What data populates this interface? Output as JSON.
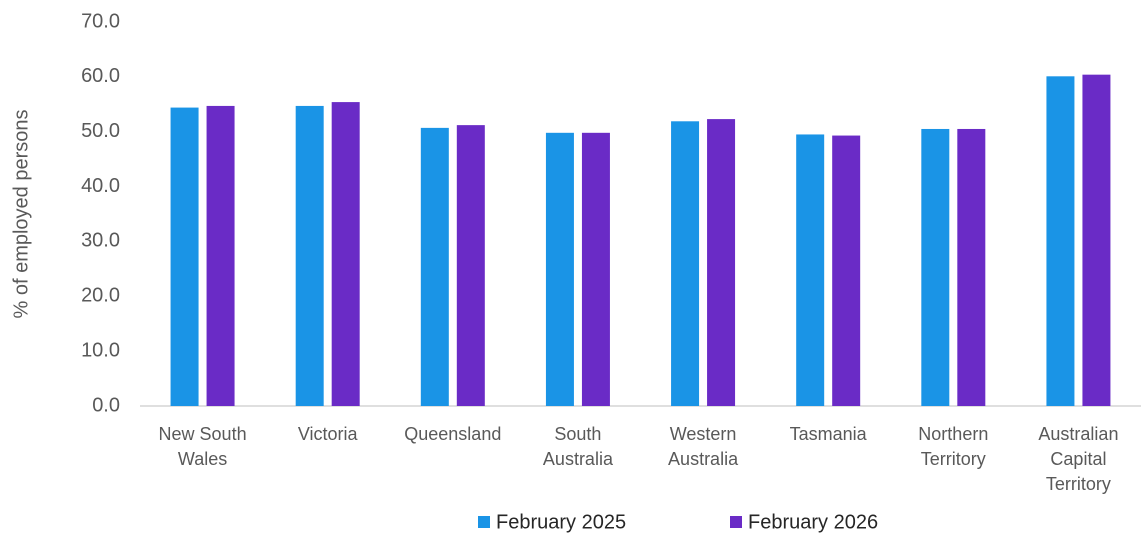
{
  "chart_data": {
    "type": "bar",
    "y_label": "% of employed persons",
    "categories": [
      [
        "New South",
        "Wales"
      ],
      [
        "Victoria"
      ],
      [
        "Queensland"
      ],
      [
        "South",
        "Australia"
      ],
      [
        "Western",
        "Australia"
      ],
      [
        "Tasmania"
      ],
      [
        "Northern",
        "Territory"
      ],
      [
        "Australian",
        "Capital",
        "Territory"
      ]
    ],
    "series": [
      {
        "name": "February 2025",
        "color": "#1a94e6",
        "values": [
          54.4,
          54.7,
          50.7,
          49.8,
          51.9,
          49.5,
          50.5,
          60.1
        ]
      },
      {
        "name": "February 2026",
        "color": "#6a2bc6",
        "values": [
          54.7,
          55.4,
          51.2,
          49.8,
          52.3,
          49.3,
          50.5,
          60.4
        ]
      }
    ],
    "ylim": [
      0,
      70
    ],
    "yticks": [
      {
        "value": 0,
        "label": "0.0"
      },
      {
        "value": 10,
        "label": "10.0"
      },
      {
        "value": 20,
        "label": "20.0"
      },
      {
        "value": 30,
        "label": "30.0"
      },
      {
        "value": 40,
        "label": "40.0"
      },
      {
        "value": 50,
        "label": "50.0"
      },
      {
        "value": 60,
        "label": "60.0"
      },
      {
        "value": 70,
        "label": "70.0"
      }
    ],
    "grid": false,
    "legend": "bottom"
  }
}
